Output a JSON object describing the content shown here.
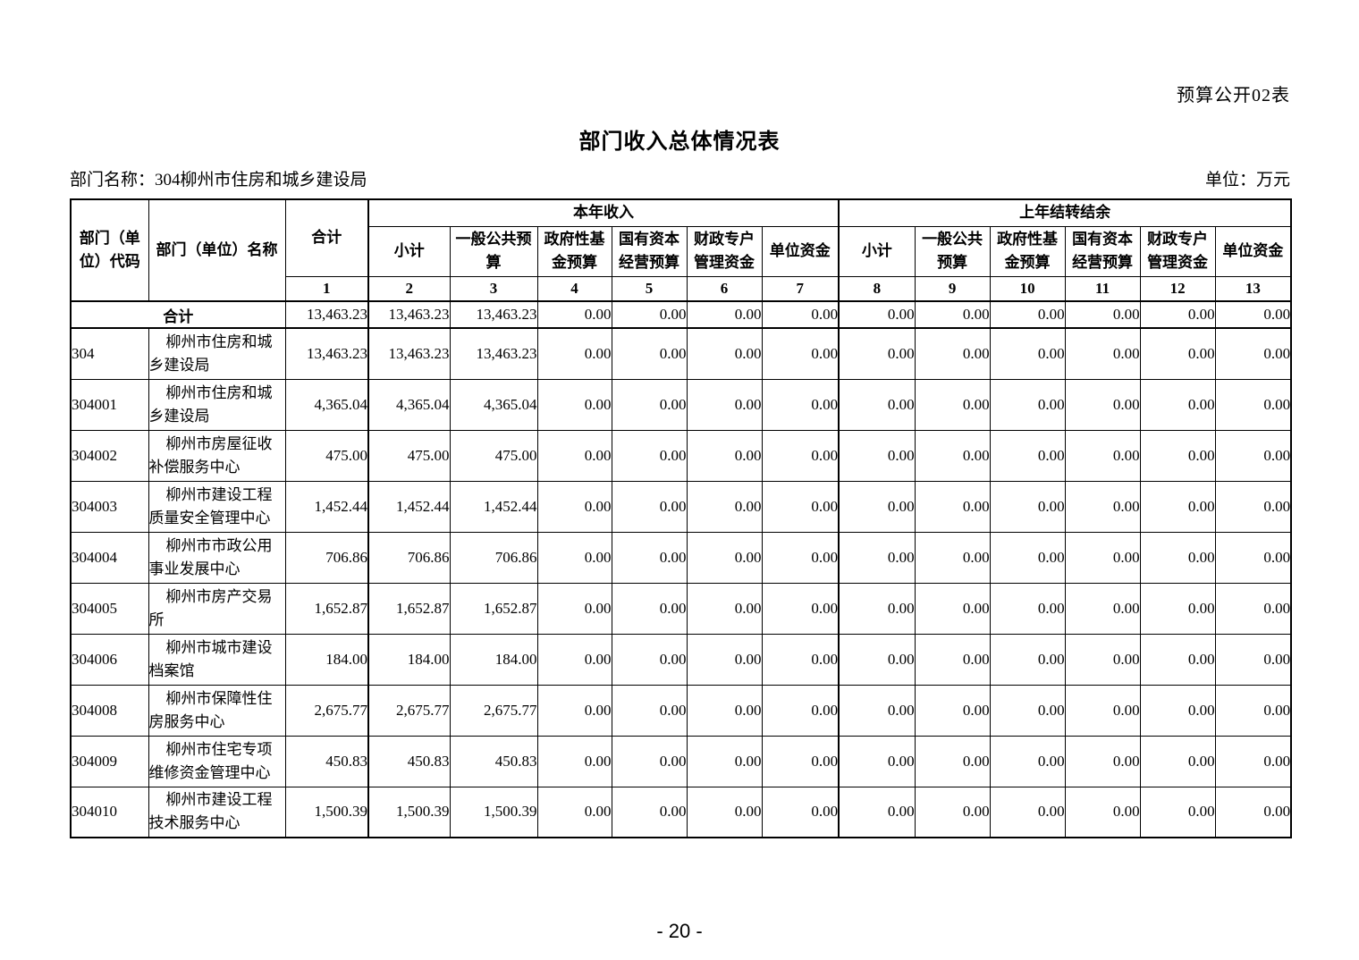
{
  "page": {
    "sheet_label": "预算公开02表",
    "title": "部门收入总体情况表",
    "department_label": "部门名称：304柳州市住房和城乡建设局",
    "unit_label": "单位：万元",
    "page_number": "- 20 -"
  },
  "table": {
    "header": {
      "code": "部门（单位）代码",
      "name": "部门（单位）名称",
      "total": "合计",
      "group_current": "本年收入",
      "group_carryover": "上年结转结余",
      "sub_columns": [
        "小计",
        "一般公共预算",
        "政府性基金预算",
        "国有资本经营预算",
        "财政专户管理资金",
        "单位资金"
      ],
      "column_numbers": [
        "1",
        "2",
        "3",
        "4",
        "5",
        "6",
        "7",
        "8",
        "9",
        "10",
        "11",
        "12",
        "13"
      ]
    },
    "total_row": {
      "label": "合计",
      "values": [
        "13,463.23",
        "13,463.23",
        "13,463.23",
        "0.00",
        "0.00",
        "0.00",
        "0.00",
        "0.00",
        "0.00",
        "0.00",
        "0.00",
        "0.00",
        "0.00"
      ]
    },
    "rows": [
      {
        "code": "304",
        "name": "柳州市住房和城乡建设局",
        "values": [
          "13,463.23",
          "13,463.23",
          "13,463.23",
          "0.00",
          "0.00",
          "0.00",
          "0.00",
          "0.00",
          "0.00",
          "0.00",
          "0.00",
          "0.00",
          "0.00"
        ]
      },
      {
        "code": "304001",
        "name": "柳州市住房和城乡建设局",
        "values": [
          "4,365.04",
          "4,365.04",
          "4,365.04",
          "0.00",
          "0.00",
          "0.00",
          "0.00",
          "0.00",
          "0.00",
          "0.00",
          "0.00",
          "0.00",
          "0.00"
        ]
      },
      {
        "code": "304002",
        "name": "柳州市房屋征收补偿服务中心",
        "values": [
          "475.00",
          "475.00",
          "475.00",
          "0.00",
          "0.00",
          "0.00",
          "0.00",
          "0.00",
          "0.00",
          "0.00",
          "0.00",
          "0.00",
          "0.00"
        ]
      },
      {
        "code": "304003",
        "name": "柳州市建设工程质量安全管理中心",
        "values": [
          "1,452.44",
          "1,452.44",
          "1,452.44",
          "0.00",
          "0.00",
          "0.00",
          "0.00",
          "0.00",
          "0.00",
          "0.00",
          "0.00",
          "0.00",
          "0.00"
        ]
      },
      {
        "code": "304004",
        "name": "柳州市市政公用事业发展中心",
        "values": [
          "706.86",
          "706.86",
          "706.86",
          "0.00",
          "0.00",
          "0.00",
          "0.00",
          "0.00",
          "0.00",
          "0.00",
          "0.00",
          "0.00",
          "0.00"
        ]
      },
      {
        "code": "304005",
        "name": "柳州市房产交易所",
        "values": [
          "1,652.87",
          "1,652.87",
          "1,652.87",
          "0.00",
          "0.00",
          "0.00",
          "0.00",
          "0.00",
          "0.00",
          "0.00",
          "0.00",
          "0.00",
          "0.00"
        ]
      },
      {
        "code": "304006",
        "name": "柳州市城市建设档案馆",
        "values": [
          "184.00",
          "184.00",
          "184.00",
          "0.00",
          "0.00",
          "0.00",
          "0.00",
          "0.00",
          "0.00",
          "0.00",
          "0.00",
          "0.00",
          "0.00"
        ]
      },
      {
        "code": "304008",
        "name": "柳州市保障性住房服务中心",
        "values": [
          "2,675.77",
          "2,675.77",
          "2,675.77",
          "0.00",
          "0.00",
          "0.00",
          "0.00",
          "0.00",
          "0.00",
          "0.00",
          "0.00",
          "0.00",
          "0.00"
        ]
      },
      {
        "code": "304009",
        "name": "柳州市住宅专项维修资金管理中心",
        "values": [
          "450.83",
          "450.83",
          "450.83",
          "0.00",
          "0.00",
          "0.00",
          "0.00",
          "0.00",
          "0.00",
          "0.00",
          "0.00",
          "0.00",
          "0.00"
        ]
      },
      {
        "code": "304010",
        "name": "柳州市建设工程技术服务中心",
        "values": [
          "1,500.39",
          "1,500.39",
          "1,500.39",
          "0.00",
          "0.00",
          "0.00",
          "0.00",
          "0.00",
          "0.00",
          "0.00",
          "0.00",
          "0.00",
          "0.00"
        ]
      }
    ]
  }
}
